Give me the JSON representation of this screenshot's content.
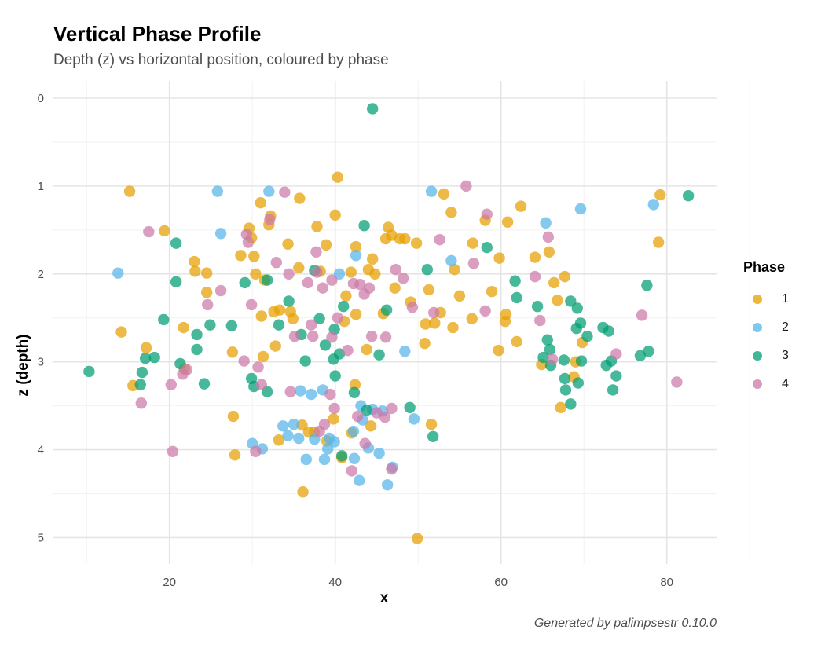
{
  "chart_data": {
    "type": "scatter",
    "title": "Vertical Phase Profile",
    "subtitle": "Depth (z) vs horizontal position, coloured by phase",
    "xlabel": "x",
    "ylabel": "z (depth)",
    "caption": "Generated by palimpsestr 0.10.0",
    "xlim": [
      6,
      86
    ],
    "ylim": [
      0,
      5.3
    ],
    "y_reversed": true,
    "x_ticks": [
      20,
      40,
      60,
      80
    ],
    "y_ticks": [
      0,
      1,
      2,
      3,
      4,
      5
    ],
    "grid": true,
    "legend": {
      "title": "Phase",
      "placement": "right"
    },
    "series": [
      {
        "name": "1",
        "color": "#E69F00",
        "points": [
          [
            15.2,
            1.06
          ],
          [
            14.2,
            2.66
          ],
          [
            17.2,
            2.84
          ],
          [
            15.6,
            3.27
          ],
          [
            19.4,
            1.51
          ],
          [
            21.7,
            2.61
          ],
          [
            21.8,
            3.08
          ],
          [
            23.0,
            1.86
          ],
          [
            23.1,
            1.97
          ],
          [
            24.5,
            1.99
          ],
          [
            24.5,
            2.21
          ],
          [
            27.6,
            2.89
          ],
          [
            27.7,
            3.62
          ],
          [
            27.9,
            4.06
          ],
          [
            28.6,
            1.79
          ],
          [
            29.6,
            1.48
          ],
          [
            29.9,
            1.59
          ],
          [
            30.2,
            1.8
          ],
          [
            30.4,
            2.0
          ],
          [
            31.0,
            1.19
          ],
          [
            31.1,
            2.48
          ],
          [
            31.3,
            2.94
          ],
          [
            31.5,
            2.07
          ],
          [
            32.0,
            1.44
          ],
          [
            32.2,
            1.34
          ],
          [
            32.6,
            2.43
          ],
          [
            32.8,
            2.82
          ],
          [
            33.2,
            3.89
          ],
          [
            33.3,
            2.41
          ],
          [
            34.3,
            1.66
          ],
          [
            34.6,
            2.43
          ],
          [
            34.9,
            2.51
          ],
          [
            35.6,
            1.93
          ],
          [
            35.7,
            1.14
          ],
          [
            36.0,
            3.72
          ],
          [
            36.1,
            4.48
          ],
          [
            36.8,
            3.8
          ],
          [
            37.5,
            3.8
          ],
          [
            37.8,
            1.46
          ],
          [
            38.2,
            1.97
          ],
          [
            38.9,
            1.67
          ],
          [
            39.0,
            3.9
          ],
          [
            39.8,
            3.65
          ],
          [
            40.0,
            1.33
          ],
          [
            40.3,
            0.9
          ],
          [
            40.8,
            4.09
          ],
          [
            41.1,
            2.54
          ],
          [
            41.3,
            2.25
          ],
          [
            41.9,
            1.98
          ],
          [
            42.0,
            3.81
          ],
          [
            42.4,
            3.26
          ],
          [
            42.5,
            2.46
          ],
          [
            42.5,
            1.69
          ],
          [
            43.8,
            2.86
          ],
          [
            44.0,
            1.95
          ],
          [
            44.3,
            3.73
          ],
          [
            44.5,
            1.83
          ],
          [
            44.8,
            2.0
          ],
          [
            45.8,
            2.45
          ],
          [
            46.1,
            1.6
          ],
          [
            46.4,
            1.47
          ],
          [
            46.8,
            1.56
          ],
          [
            47.2,
            2.16
          ],
          [
            47.8,
            1.6
          ],
          [
            48.4,
            1.6
          ],
          [
            49.1,
            2.32
          ],
          [
            49.8,
            1.65
          ],
          [
            49.9,
            5.01
          ],
          [
            50.8,
            2.79
          ],
          [
            50.9,
            2.57
          ],
          [
            51.3,
            2.18
          ],
          [
            51.6,
            3.71
          ],
          [
            52.0,
            2.56
          ],
          [
            52.7,
            2.44
          ],
          [
            53.1,
            1.09
          ],
          [
            54.0,
            1.3
          ],
          [
            54.2,
            2.61
          ],
          [
            54.4,
            1.95
          ],
          [
            55.0,
            2.25
          ],
          [
            56.5,
            2.51
          ],
          [
            56.6,
            1.65
          ],
          [
            58.1,
            1.39
          ],
          [
            58.9,
            2.2
          ],
          [
            59.8,
            1.82
          ],
          [
            59.7,
            2.87
          ],
          [
            60.5,
            2.54
          ],
          [
            60.6,
            2.46
          ],
          [
            60.8,
            1.41
          ],
          [
            61.9,
            2.77
          ],
          [
            62.4,
            1.23
          ],
          [
            64.1,
            1.81
          ],
          [
            64.9,
            3.03
          ],
          [
            65.8,
            1.75
          ],
          [
            66.4,
            2.1
          ],
          [
            66.8,
            2.3
          ],
          [
            67.2,
            3.52
          ],
          [
            67.7,
            2.03
          ],
          [
            68.8,
            3.17
          ],
          [
            69.0,
            3.0
          ],
          [
            69.8,
            2.78
          ],
          [
            79.0,
            1.64
          ],
          [
            79.2,
            1.1
          ]
        ]
      },
      {
        "name": "2",
        "color": "#56B4E9",
        "points": [
          [
            13.8,
            1.99
          ],
          [
            25.8,
            1.06
          ],
          [
            26.2,
            1.54
          ],
          [
            30.0,
            3.93
          ],
          [
            31.2,
            3.99
          ],
          [
            32.0,
            1.06
          ],
          [
            33.7,
            3.73
          ],
          [
            34.3,
            3.84
          ],
          [
            35.0,
            3.71
          ],
          [
            35.6,
            3.87
          ],
          [
            35.8,
            3.33
          ],
          [
            36.5,
            4.11
          ],
          [
            37.1,
            3.37
          ],
          [
            37.5,
            3.88
          ],
          [
            38.7,
            4.11
          ],
          [
            38.5,
            3.32
          ],
          [
            39.3,
            3.87
          ],
          [
            39.1,
            3.99
          ],
          [
            39.9,
            3.91
          ],
          [
            40.5,
            2.0
          ],
          [
            42.2,
            3.79
          ],
          [
            42.3,
            4.1
          ],
          [
            42.5,
            1.79
          ],
          [
            42.9,
            4.35
          ],
          [
            43.1,
            3.5
          ],
          [
            43.3,
            3.66
          ],
          [
            44.0,
            3.98
          ],
          [
            44.5,
            3.54
          ],
          [
            45.3,
            4.04
          ],
          [
            45.7,
            3.56
          ],
          [
            46.3,
            4.4
          ],
          [
            46.9,
            4.2
          ],
          [
            48.4,
            2.88
          ],
          [
            49.5,
            3.65
          ],
          [
            51.6,
            1.06
          ],
          [
            54.0,
            1.85
          ],
          [
            65.4,
            1.42
          ],
          [
            69.6,
            1.26
          ],
          [
            78.4,
            1.21
          ]
        ]
      },
      {
        "name": "3",
        "color": "#009E73",
        "points": [
          [
            10.3,
            3.11
          ],
          [
            16.5,
            3.26
          ],
          [
            16.7,
            3.12
          ],
          [
            17.1,
            2.96
          ],
          [
            18.2,
            2.95
          ],
          [
            19.3,
            2.52
          ],
          [
            20.8,
            1.65
          ],
          [
            20.8,
            2.09
          ],
          [
            21.3,
            3.02
          ],
          [
            23.3,
            2.69
          ],
          [
            23.3,
            2.86
          ],
          [
            24.2,
            3.25
          ],
          [
            24.9,
            2.58
          ],
          [
            27.5,
            2.59
          ],
          [
            29.1,
            2.1
          ],
          [
            29.9,
            3.19
          ],
          [
            30.2,
            3.28
          ],
          [
            31.8,
            2.07
          ],
          [
            31.8,
            3.34
          ],
          [
            33.2,
            2.58
          ],
          [
            34.4,
            2.31
          ],
          [
            35.9,
            2.69
          ],
          [
            36.4,
            2.99
          ],
          [
            37.5,
            1.96
          ],
          [
            38.1,
            2.51
          ],
          [
            38.8,
            2.81
          ],
          [
            39.8,
            2.97
          ],
          [
            39.9,
            2.63
          ],
          [
            40.0,
            3.16
          ],
          [
            40.5,
            2.91
          ],
          [
            40.8,
            4.07
          ],
          [
            41.0,
            2.37
          ],
          [
            42.3,
            3.35
          ],
          [
            43.5,
            1.45
          ],
          [
            43.8,
            3.55
          ],
          [
            44.5,
            0.12
          ],
          [
            45.3,
            2.92
          ],
          [
            46.2,
            2.41
          ],
          [
            49.0,
            3.52
          ],
          [
            51.1,
            1.95
          ],
          [
            51.8,
            3.85
          ],
          [
            58.3,
            1.7
          ],
          [
            61.7,
            2.08
          ],
          [
            61.9,
            2.27
          ],
          [
            64.4,
            2.37
          ],
          [
            65.1,
            2.95
          ],
          [
            65.6,
            2.75
          ],
          [
            65.9,
            2.86
          ],
          [
            66.0,
            3.04
          ],
          [
            67.6,
            2.98
          ],
          [
            67.7,
            3.19
          ],
          [
            67.8,
            3.32
          ],
          [
            68.4,
            3.48
          ],
          [
            68.4,
            2.31
          ],
          [
            69.1,
            2.62
          ],
          [
            69.2,
            2.39
          ],
          [
            69.3,
            3.24
          ],
          [
            69.6,
            2.56
          ],
          [
            69.7,
            2.99
          ],
          [
            70.4,
            2.71
          ],
          [
            72.3,
            2.61
          ],
          [
            72.7,
            3.04
          ],
          [
            73.0,
            2.65
          ],
          [
            73.3,
            2.99
          ],
          [
            73.5,
            3.32
          ],
          [
            73.9,
            3.16
          ],
          [
            76.8,
            2.93
          ],
          [
            77.6,
            2.13
          ],
          [
            77.8,
            2.88
          ],
          [
            82.6,
            1.11
          ]
        ]
      },
      {
        "name": "4",
        "color": "#CC79A7",
        "points": [
          [
            16.6,
            3.47
          ],
          [
            17.5,
            1.52
          ],
          [
            20.2,
            3.26
          ],
          [
            20.4,
            4.02
          ],
          [
            21.6,
            3.14
          ],
          [
            22.1,
            3.09
          ],
          [
            24.6,
            2.35
          ],
          [
            26.2,
            2.19
          ],
          [
            29.0,
            2.99
          ],
          [
            29.3,
            1.55
          ],
          [
            29.5,
            1.64
          ],
          [
            29.9,
            2.35
          ],
          [
            30.4,
            4.02
          ],
          [
            30.7,
            3.06
          ],
          [
            31.1,
            3.26
          ],
          [
            32.1,
            1.38
          ],
          [
            32.9,
            1.87
          ],
          [
            33.9,
            1.07
          ],
          [
            34.4,
            2.0
          ],
          [
            34.6,
            3.34
          ],
          [
            35.1,
            2.71
          ],
          [
            36.7,
            2.1
          ],
          [
            37.1,
            2.58
          ],
          [
            37.3,
            2.71
          ],
          [
            37.7,
            1.75
          ],
          [
            37.8,
            1.98
          ],
          [
            38.1,
            3.79
          ],
          [
            38.5,
            2.16
          ],
          [
            38.7,
            3.71
          ],
          [
            39.4,
            3.37
          ],
          [
            39.6,
            2.72
          ],
          [
            39.6,
            2.07
          ],
          [
            39.9,
            3.53
          ],
          [
            40.3,
            2.5
          ],
          [
            41.5,
            2.87
          ],
          [
            42.2,
            2.11
          ],
          [
            42.7,
            3.62
          ],
          [
            42.0,
            4.24
          ],
          [
            43.0,
            2.12
          ],
          [
            43.5,
            2.23
          ],
          [
            43.6,
            3.93
          ],
          [
            44.1,
            2.16
          ],
          [
            44.4,
            2.71
          ],
          [
            45.0,
            3.58
          ],
          [
            46.0,
            3.63
          ],
          [
            46.1,
            2.72
          ],
          [
            46.8,
            3.53
          ],
          [
            46.8,
            4.22
          ],
          [
            47.3,
            1.95
          ],
          [
            48.2,
            2.05
          ],
          [
            49.3,
            2.38
          ],
          [
            51.9,
            2.44
          ],
          [
            52.6,
            1.61
          ],
          [
            55.8,
            1.0
          ],
          [
            56.7,
            1.88
          ],
          [
            58.1,
            2.42
          ],
          [
            58.3,
            1.32
          ],
          [
            64.1,
            2.03
          ],
          [
            64.7,
            2.53
          ],
          [
            65.7,
            1.58
          ],
          [
            66.2,
            2.97
          ],
          [
            73.9,
            2.91
          ],
          [
            77.0,
            2.47
          ],
          [
            81.2,
            3.23
          ]
        ]
      }
    ]
  }
}
